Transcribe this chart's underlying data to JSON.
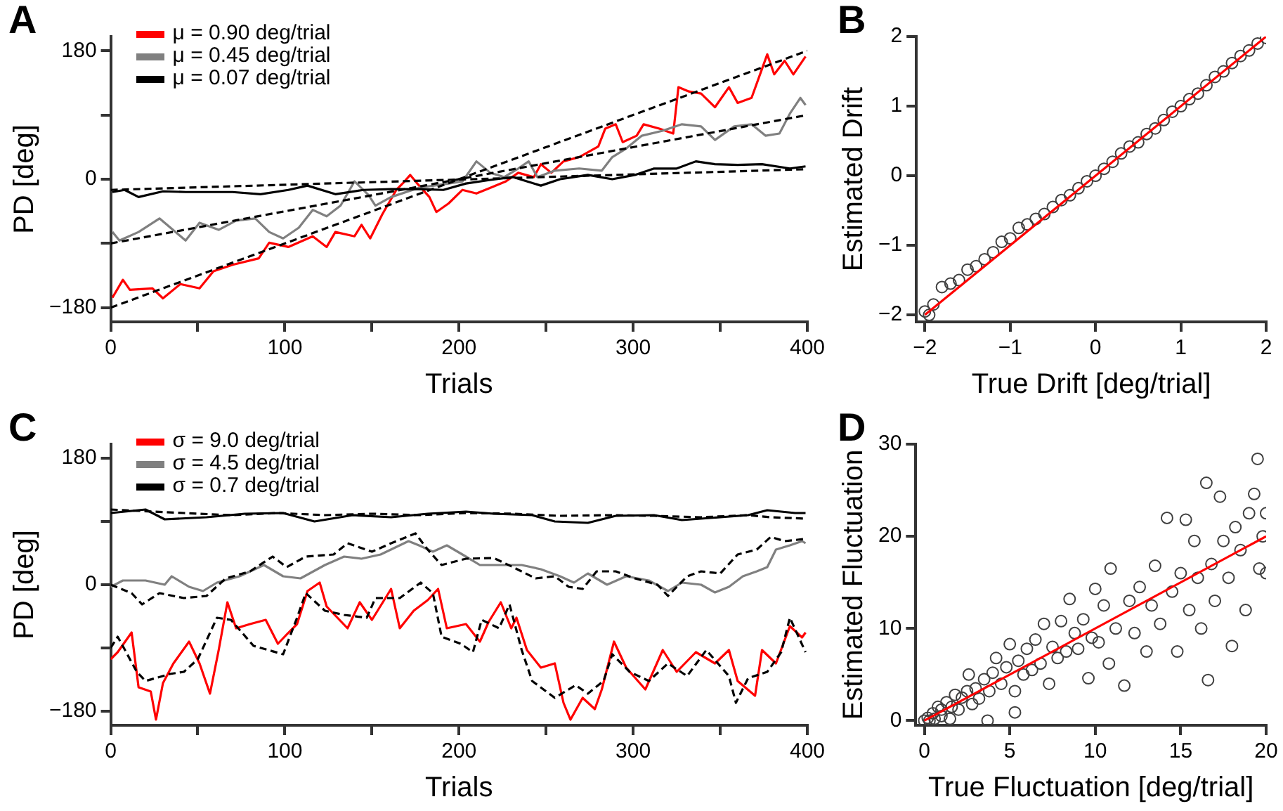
{
  "chart_data": [
    {
      "type": "line",
      "title": "A",
      "xlabel": "Trials",
      "ylabel": "PD [deg]",
      "xlim": [
        0,
        400
      ],
      "xticks": [
        0,
        {
          "value": 50,
          "label": null
        },
        100,
        {
          "value": 150,
          "label": null
        },
        200,
        {
          "value": 250,
          "label": null
        },
        300,
        {
          "value": 350,
          "label": null
        },
        400
      ],
      "ylim": [
        -200,
        200
      ],
      "yticks": [
        {
          "value": -180,
          "label": "−180"
        },
        {
          "value": -90,
          "label": null
        },
        0,
        {
          "value": 90,
          "label": null
        },
        180
      ],
      "legend": "top left",
      "line_style": "solid",
      "series": [
        {
          "name": "μ = 0.90 deg/trial",
          "color": "#ff0000",
          "x": [
            1,
            7,
            11,
            24,
            30,
            40,
            51,
            59,
            70,
            85,
            91,
            102,
            116,
            124,
            129,
            140,
            144,
            149,
            156,
            164,
            168,
            172,
            176,
            183,
            187,
            194,
            202,
            210,
            218,
            227,
            234,
            243,
            247,
            253,
            260,
            269,
            280,
            284,
            290,
            294,
            302,
            306,
            315,
            323,
            326,
            332,
            339,
            347,
            355,
            360,
            368,
            377,
            381,
            387,
            392,
            399
          ],
          "values": [
            -166,
            -141,
            -155,
            -153,
            -167,
            -147,
            -153,
            -129,
            -120,
            -111,
            -89,
            -95,
            -80,
            -95,
            -74,
            -80,
            -64,
            -83,
            -49,
            -15,
            -5,
            6,
            -6,
            -25,
            -46,
            -34,
            -15,
            -20,
            -12,
            -3,
            9,
            3,
            21,
            9,
            25,
            31,
            46,
            71,
            77,
            52,
            61,
            77,
            71,
            64,
            129,
            123,
            120,
            101,
            129,
            107,
            114,
            175,
            147,
            166,
            147,
            172
          ]
        },
        {
          "name": "μ = 0.45 deg/trial",
          "color": "#808080",
          "x": [
            1,
            5,
            16,
            28,
            43,
            51,
            62,
            72,
            83,
            91,
            99,
            108,
            116,
            124,
            132,
            140,
            148,
            152,
            161,
            177,
            194,
            202,
            210,
            218,
            226,
            234,
            240,
            245,
            255,
            269,
            282,
            288,
            296,
            305,
            317,
            328,
            339,
            347,
            358,
            368,
            376,
            384,
            390,
            396,
            399
          ],
          "values": [
            -74,
            -86,
            -74,
            -55,
            -86,
            -61,
            -71,
            -58,
            -55,
            -74,
            -83,
            -68,
            -43,
            -52,
            -37,
            -3,
            -22,
            -37,
            -25,
            -12,
            -6,
            -3,
            25,
            9,
            3,
            15,
            25,
            3,
            12,
            15,
            12,
            31,
            43,
            61,
            68,
            77,
            74,
            55,
            74,
            77,
            61,
            64,
            92,
            114,
            104
          ]
        },
        {
          "name": "μ = 0.07 deg/trial",
          "color": "#000000",
          "x": [
            1,
            8,
            16,
            30,
            43,
            56,
            70,
            86,
            102,
            113,
            129,
            145,
            161,
            177,
            191,
            204,
            218,
            231,
            247,
            258,
            274,
            288,
            301,
            312,
            325,
            336,
            347,
            360,
            374,
            390,
            399
          ],
          "values": [
            -18,
            -15,
            -25,
            -17,
            -18,
            -18,
            -18,
            -21,
            -15,
            -9,
            -21,
            -15,
            -14,
            -14,
            -15,
            -6,
            -1,
            3,
            -9,
            0,
            6,
            0,
            6,
            15,
            15,
            25,
            21,
            20,
            21,
            15,
            18
          ]
        },
        {
          "color": "#000000",
          "line_style": "dashed",
          "x": [
            0,
            400
          ],
          "values": [
            -180,
            180
          ]
        },
        {
          "color": "#000000",
          "line_style": "dashed",
          "x": [
            0,
            400
          ],
          "values": [
            -90,
            90
          ]
        },
        {
          "color": "#000000",
          "line_style": "dashed",
          "x": [
            0,
            400
          ],
          "values": [
            -15,
            14
          ]
        }
      ]
    },
    {
      "type": "scatter",
      "title": "B",
      "xlabel": "True Drift [deg/trial]",
      "ylabel": "Estimated Drift",
      "xlim": [
        -2.1,
        2
      ],
      "xticks": [
        {
          "value": -2,
          "label": "−2"
        },
        {
          "value": -1,
          "label": "−1"
        },
        0,
        1,
        2
      ],
      "ylim": [
        -2.1,
        2
      ],
      "yticks": [
        {
          "value": -2,
          "label": "−2"
        },
        {
          "value": -1,
          "label": "−1"
        },
        0,
        1,
        2
      ],
      "series": [
        {
          "color": "#404040",
          "marker": "circle",
          "x": [
            -2,
            -1.95,
            -1.9,
            -1.8,
            -1.7,
            -1.6,
            -1.5,
            -1.4,
            -1.3,
            -1.2,
            -1.1,
            -1,
            -0.9,
            -0.8,
            -0.7,
            -0.6,
            -0.5,
            -0.4,
            -0.3,
            -0.2,
            -0.1,
            0,
            0.1,
            0.2,
            0.3,
            0.4,
            0.5,
            0.6,
            0.7,
            0.8,
            0.9,
            1,
            1.1,
            1.2,
            1.3,
            1.4,
            1.5,
            1.6,
            1.7,
            1.8,
            1.9,
            2
          ],
          "values": [
            -1.95,
            -2,
            -1.85,
            -1.6,
            -1.55,
            -1.5,
            -1.35,
            -1.3,
            -1.2,
            -1.1,
            -0.95,
            -0.9,
            -0.75,
            -0.7,
            -0.62,
            -0.55,
            -0.45,
            -0.35,
            -0.28,
            -0.18,
            -0.08,
            0,
            0.1,
            0.2,
            0.32,
            0.42,
            0.48,
            0.6,
            0.68,
            0.8,
            0.92,
            1,
            1.1,
            1.18,
            1.3,
            1.42,
            1.5,
            1.62,
            1.72,
            1.8,
            1.9,
            1.98
          ]
        },
        {
          "type": "line",
          "color": "#ff0000",
          "x": [
            -2,
            2
          ],
          "values": [
            -2,
            2
          ]
        }
      ]
    },
    {
      "type": "line",
      "title": "C",
      "xlabel": "Trials",
      "ylabel": "PD [deg]",
      "xlim": [
        0,
        400
      ],
      "xticks": [
        0,
        {
          "value": 50,
          "label": null
        },
        100,
        {
          "value": 150,
          "label": null
        },
        200,
        {
          "value": 250,
          "label": null
        },
        300,
        {
          "value": 350,
          "label": null
        },
        400
      ],
      "ylim": [
        -200,
        200
      ],
      "yticks": [
        {
          "value": -180,
          "label": "−180"
        },
        {
          "value": -90,
          "label": null
        },
        0,
        {
          "value": 90,
          "label": null
        },
        180
      ],
      "legend": "top left",
      "line_style": "solid",
      "series": [
        {
          "name": "σ = 9.0 deg/trial",
          "color": "#ff0000",
          "x": [
            0,
            4,
            12,
            16,
            23,
            26,
            30,
            36,
            45,
            51,
            57,
            62,
            67,
            72,
            80,
            89,
            96,
            101,
            107,
            113,
            120,
            124,
            136,
            143,
            150,
            161,
            166,
            174,
            182,
            188,
            193,
            204,
            212,
            217,
            224,
            230,
            233,
            239,
            247,
            255,
            260,
            264,
            271,
            278,
            282,
            289,
            296,
            307,
            317,
            325,
            336,
            347,
            355,
            360,
            370,
            374,
            382,
            390,
            397,
            399
          ],
          "values": [
            -106,
            -96,
            -68,
            -146,
            -152,
            -192,
            -140,
            -112,
            -81,
            -112,
            -155,
            -93,
            -25,
            -62,
            -56,
            -50,
            -84,
            -71,
            -56,
            -9,
            3,
            -31,
            -62,
            -25,
            -50,
            -6,
            -62,
            -37,
            -22,
            -6,
            -62,
            -56,
            -81,
            -53,
            -25,
            -62,
            -47,
            -93,
            -118,
            -112,
            -168,
            -192,
            -161,
            -177,
            -149,
            -81,
            -118,
            -149,
            -93,
            -124,
            -96,
            -112,
            -93,
            -137,
            -158,
            -93,
            -112,
            -59,
            -75,
            -68
          ]
        },
        {
          "name": "σ = 4.5 deg/trial",
          "color": "#808080",
          "x": [
            0,
            7,
            20,
            31,
            35,
            45,
            53,
            61,
            74,
            88,
            99,
            109,
            123,
            134,
            144,
            155,
            171,
            177,
            185,
            193,
            204,
            212,
            225,
            236,
            247,
            258,
            266,
            274,
            285,
            296,
            309,
            320,
            328,
            339,
            347,
            355,
            363,
            371,
            377,
            382,
            390,
            397,
            399
          ],
          "values": [
            -3,
            6,
            6,
            0,
            12,
            -3,
            -9,
            3,
            12,
            28,
            12,
            9,
            28,
            40,
            37,
            43,
            62,
            56,
            47,
            56,
            40,
            28,
            28,
            28,
            22,
            12,
            3,
            16,
            0,
            12,
            6,
            -9,
            3,
            0,
            -11,
            -3,
            12,
            19,
            25,
            50,
            56,
            62,
            59
          ]
        },
        {
          "name": "σ = 0.7 deg/trial",
          "color": "#000000",
          "x": [
            0,
            20,
            31,
            55,
            77,
            99,
            117,
            139,
            161,
            182,
            204,
            220,
            242,
            255,
            274,
            290,
            312,
            328,
            350,
            366,
            377,
            393,
            399
          ],
          "values": [
            102,
            107,
            93,
            96,
            101,
            102,
            90,
            99,
            96,
            101,
            104,
            101,
            99,
            90,
            88,
            98,
            99,
            92,
            96,
            99,
            106,
            102,
            102
          ]
        },
        {
          "color": "#000000",
          "line_style": "dashed",
          "x": [
            0,
            4,
            15,
            20,
            34,
            42,
            50,
            61,
            69,
            82,
            99,
            107,
            112,
            123,
            134,
            147,
            152,
            166,
            178,
            185,
            190,
            201,
            208,
            213,
            223,
            229,
            236,
            242,
            255,
            267,
            274,
            283,
            288,
            298,
            309,
            320,
            331,
            342,
            355,
            359,
            366,
            377,
            385,
            390,
            399
          ],
          "values": [
            -90,
            -74,
            -124,
            -137,
            -127,
            -124,
            -106,
            -47,
            -50,
            -87,
            -99,
            -47,
            -12,
            -37,
            -43,
            -47,
            -19,
            -19,
            3,
            -12,
            -74,
            -84,
            -96,
            -50,
            -62,
            -28,
            -93,
            -137,
            -161,
            -143,
            -155,
            -137,
            -99,
            -124,
            -137,
            -112,
            -130,
            -93,
            -130,
            -168,
            -133,
            -124,
            -96,
            -47,
            -96
          ]
        },
        {
          "color": "#000000",
          "line_style": "dashed",
          "x": [
            0,
            12,
            18,
            28,
            42,
            55,
            66,
            80,
            93,
            101,
            112,
            128,
            136,
            150,
            161,
            175,
            182,
            190,
            204,
            220,
            231,
            244,
            255,
            263,
            271,
            279,
            290,
            301,
            314,
            320,
            331,
            339,
            350,
            360,
            371,
            379,
            387,
            398
          ],
          "values": [
            0,
            -12,
            -28,
            -12,
            -19,
            -16,
            9,
            19,
            40,
            25,
            40,
            43,
            59,
            47,
            59,
            73,
            50,
            28,
            37,
            38,
            25,
            9,
            12,
            -3,
            -6,
            19,
            19,
            9,
            0,
            -16,
            12,
            19,
            16,
            43,
            50,
            68,
            62,
            65
          ]
        },
        {
          "color": "#000000",
          "line_style": "dashed",
          "x": [
            0,
            42,
            69,
            96,
            123,
            150,
            177,
            204,
            231,
            258,
            285,
            312,
            339,
            366,
            379,
            399
          ],
          "values": [
            107,
            102,
            99,
            102,
            99,
            101,
            99,
            102,
            101,
            98,
            99,
            98,
            96,
            99,
            96,
            94
          ]
        }
      ]
    },
    {
      "type": "scatter",
      "title": "D",
      "xlabel": "True Fluctuation [deg/trial]",
      "ylabel": "Estimated Fluctuation",
      "xlim": [
        -0.5,
        20
      ],
      "xticks": [
        0,
        5,
        10,
        15,
        20
      ],
      "ylim": [
        -0.5,
        30
      ],
      "yticks": [
        0,
        10,
        20,
        30
      ],
      "series": [
        {
          "color": "#404040",
          "marker": "circle",
          "x": [
            0,
            0.2,
            0.3,
            0.5,
            0.6,
            0.8,
            1,
            1,
            1.3,
            1.5,
            1.6,
            1.8,
            2,
            2.2,
            2.5,
            2.6,
            2.8,
            3,
            3.2,
            3.5,
            3.7,
            3.8,
            4,
            4.2,
            4.5,
            4.8,
            5,
            5.3,
            5.3,
            5.5,
            5.8,
            6,
            6.3,
            6.5,
            6.8,
            7,
            7.3,
            7.5,
            7.8,
            8,
            8.3,
            8.5,
            8.8,
            9,
            9.3,
            9.6,
            9.8,
            10,
            10.2,
            10.5,
            10.8,
            10.9,
            11.2,
            11.7,
            12,
            12.3,
            12.6,
            13,
            13.3,
            13.5,
            13.8,
            14.2,
            14.5,
            14.8,
            15,
            15.3,
            15.5,
            15.8,
            16,
            16.2,
            16.5,
            16.6,
            16.8,
            17,
            17.3,
            17.5,
            17.8,
            18,
            18.2,
            18.5,
            18.8,
            19,
            19.3,
            19.5,
            19.6,
            19.8,
            20,
            20
          ],
          "values": [
            0,
            0.3,
            0,
            0.8,
            0.2,
            1.5,
            0.5,
            1.2,
            2,
            0.2,
            1.5,
            2.8,
            1.2,
            2.5,
            3.2,
            5,
            1.8,
            3.5,
            2.4,
            4.5,
            0,
            3.2,
            5.2,
            6.8,
            4,
            5.8,
            8.3,
            0.9,
            3.2,
            6.5,
            5,
            7.8,
            5.5,
            8.8,
            6.2,
            10.5,
            4,
            8,
            6.8,
            10.8,
            7.5,
            13.2,
            9.5,
            7.8,
            11,
            4.6,
            9,
            14.3,
            8.5,
            12.5,
            6.2,
            16.5,
            10,
            3.8,
            13,
            9.5,
            14.5,
            7.5,
            12.5,
            16.8,
            10.5,
            22,
            14,
            7.5,
            16,
            21.8,
            12,
            19.5,
            15.5,
            10,
            25.8,
            4.4,
            17,
            13,
            24.3,
            19.5,
            15.5,
            8.1,
            21,
            18.5,
            12,
            22.5,
            24.6,
            28.4,
            16.5,
            20,
            22.5,
            16
          ]
        },
        {
          "type": "line",
          "color": "#ff0000",
          "x": [
            0,
            20
          ],
          "values": [
            0,
            20
          ]
        }
      ]
    }
  ]
}
